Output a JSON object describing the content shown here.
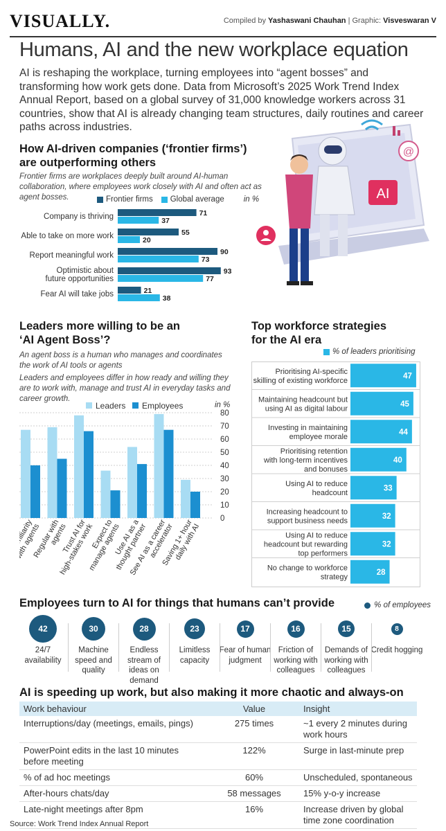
{
  "header": {
    "brand": "VISUALLY.",
    "compiled_prefix": "Compiled by ",
    "compiler": "Yashaswani Chauhan",
    "graphic_prefix": " | Graphic: ",
    "graphic_artist": "Visveswaran V"
  },
  "headline": "Humans, AI and the new workplace equation",
  "intro": "AI is reshaping the workplace, turning employees into “agent bosses” and transforming how work gets done. Data from Microsoft’s 2025 Work Trend Index Annual Report, based on a global survey of 31,000 knowledge workers across 31 countries, show that AI is already changing team structures, daily routines and career paths across industries.",
  "illustration": {
    "screen_badge": "AI",
    "at_symbol": "@"
  },
  "colors": {
    "dark_blue": "#1d5a7e",
    "cyan": "#2ab7e6",
    "light_blue": "#a8dcf3",
    "mid_blue": "#1c8fd0",
    "header_bg": "#d8ecf6"
  },
  "frontier": {
    "title_line1": "How AI-driven companies (‘frontier firms’)",
    "title_line2": "are outperforming others",
    "note": "Frontier firms are workplaces deeply built around AI-human collaboration, where employees work closely with AI and often act as agent bosses.",
    "unit": "in %"
  },
  "leaders": {
    "title_line1": "Leaders more willing to be an",
    "title_line2": "‘AI Agent Boss’?",
    "note1": "An agent boss is a human who manages and coordinates the work of AI tools or agents",
    "note2": "Leaders and employees differ in how ready and willing they are to work with, manage and trust AI in everyday tasks and career growth.",
    "unit": "in %"
  },
  "strategies": {
    "title_line1": "Top workforce strategies",
    "title_line2": "for the AI era",
    "legend": "% of leaders prioritising"
  },
  "employees": {
    "title": "Employees turn to AI for things that humans can’t provide",
    "legend": "% of employees",
    "items": [
      {
        "value": "42",
        "label": "24/7 availability"
      },
      {
        "value": "30",
        "label": "Machine speed and quality"
      },
      {
        "value": "28",
        "label": "Endless stream of ideas on demand"
      },
      {
        "value": "23",
        "label": "Limitless capacity"
      },
      {
        "value": "17",
        "label": "Fear of human judgment"
      },
      {
        "value": "16",
        "label": "Friction of working with colleagues"
      },
      {
        "value": "15",
        "label": "Demands of working with colleagues"
      },
      {
        "value": "8",
        "label": "Credit hogging"
      }
    ]
  },
  "work": {
    "title": "AI is speeding up work, but also making it more chaotic and always-on",
    "headers": [
      "Work behaviour",
      "Value",
      "Insight"
    ],
    "rows": [
      [
        "Interruptions/day (meetings, emails, pings)",
        "275 times",
        "~1 every 2 minutes during work hours"
      ],
      [
        "PowerPoint edits in the last 10 minutes before meeting",
        "122%",
        "Surge in last-minute prep"
      ],
      [
        "% of ad hoc meetings",
        "60%",
        "Unscheduled, spontaneous"
      ],
      [
        "After-hours chats/day",
        "58 messages",
        "15% y-o-y increase"
      ],
      [
        "Late-night meetings after 8pm",
        "16%",
        "Increase driven by global time zone coordination"
      ]
    ]
  },
  "source": "Source: Work Trend Index Annual Report",
  "chart_data": [
    {
      "type": "bar",
      "orientation": "horizontal",
      "title": "How AI-driven companies (‘frontier firms’) are outperforming others",
      "unit": "in %",
      "categories": [
        [
          "Company is thriving"
        ],
        [
          "Able to take on more work"
        ],
        [
          "Report meaningful work"
        ],
        [
          "Optimistic about",
          "future opportunities"
        ],
        [
          "Fear AI will take jobs"
        ]
      ],
      "series": [
        {
          "name": "Frontier firms",
          "values": [
            71,
            55,
            90,
            93,
            21
          ]
        },
        {
          "name": "Global average",
          "values": [
            37,
            20,
            73,
            77,
            38
          ]
        }
      ],
      "xlim": [
        0,
        100
      ],
      "legend": "top"
    },
    {
      "type": "bar",
      "orientation": "vertical",
      "title": "Leaders more willing to be an ‘AI Agent Boss’?",
      "unit": "in %",
      "categories": [
        [
          "Familiarity",
          "with agents"
        ],
        [
          "Regular with",
          "agents"
        ],
        [
          "Trust AI for",
          "high-stakes work"
        ],
        [
          "Expect to",
          "manage agents"
        ],
        [
          "Use AI as a",
          "thought partner"
        ],
        [
          "See AI as a career",
          "accelerator"
        ],
        [
          "Saving 1+ hour",
          "daily with AI"
        ]
      ],
      "series": [
        {
          "name": "Leaders",
          "values": [
            67,
            69,
            78,
            36,
            54,
            79,
            29
          ]
        },
        {
          "name": "Employees",
          "values": [
            40,
            45,
            66,
            21,
            41,
            67,
            20
          ]
        }
      ],
      "ylim": [
        0,
        80
      ],
      "yticks": [
        0,
        10,
        20,
        30,
        40,
        50,
        60,
        70,
        80
      ],
      "legend": "top"
    },
    {
      "type": "bar",
      "orientation": "horizontal",
      "title": "Top workforce strategies for the AI era",
      "series_name": "% of leaders prioritising",
      "categories": [
        [
          "Prioritising AI-specific",
          "skilling of existing workforce"
        ],
        [
          "Maintaining headcount but",
          "using AI as digital labour"
        ],
        [
          "Investing in maintaining",
          "employee morale"
        ],
        [
          "Prioritising retention",
          "with long-term incentives",
          "and bonuses"
        ],
        [
          "Using AI to reduce",
          "headcount"
        ],
        [
          "Increasing headcount to",
          "support business needs"
        ],
        [
          "Using AI to reduce",
          "headcount but rewarding",
          "top performers"
        ],
        [
          "No change to workforce",
          "strategy"
        ]
      ],
      "values": [
        47,
        45,
        44,
        40,
        33,
        32,
        32,
        28
      ],
      "xlim": [
        0,
        50
      ]
    }
  ]
}
